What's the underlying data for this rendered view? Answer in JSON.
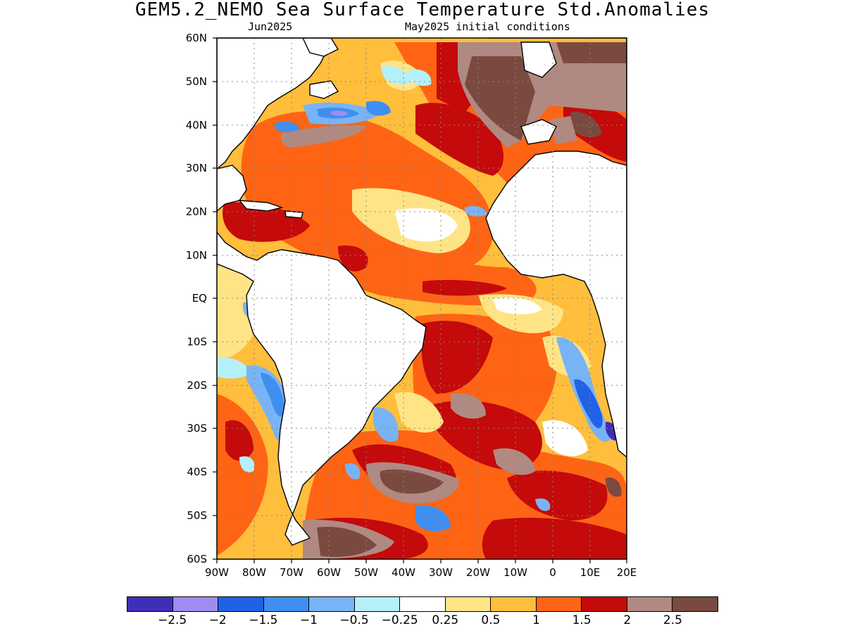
{
  "title": "GEM5.2_NEMO Sea Surface Temperature Std.Anomalies",
  "subtitle_left": "Jun2025",
  "subtitle_right": "May2025 initial conditions",
  "lat_labels": [
    "60N",
    "50N",
    "40N",
    "30N",
    "20N",
    "10N",
    "EQ",
    "10S",
    "20S",
    "30S",
    "40S",
    "50S",
    "60S"
  ],
  "lon_labels": [
    "90W",
    "80W",
    "70W",
    "60W",
    "50W",
    "40W",
    "30W",
    "20W",
    "10W",
    "0",
    "10E",
    "20E"
  ],
  "colorbar": {
    "colors": [
      "#3f2fb8",
      "#a08cf0",
      "#1f62e6",
      "#3f8ff0",
      "#78b4f5",
      "#b4f0fa",
      "#ffffff",
      "#ffe486",
      "#ffbe3c",
      "#ff6414",
      "#c40a0a",
      "#b08a82",
      "#7a4a40"
    ],
    "labels": [
      "−2.5",
      "−2",
      "−1.5",
      "−1",
      "−0.5",
      "−0.25",
      "0.25",
      "0.5",
      "1",
      "1.5",
      "2",
      "2.5"
    ]
  },
  "map": {
    "land_color": "#ffffff",
    "coast_color": "#000000",
    "grid_style": "dotted"
  }
}
